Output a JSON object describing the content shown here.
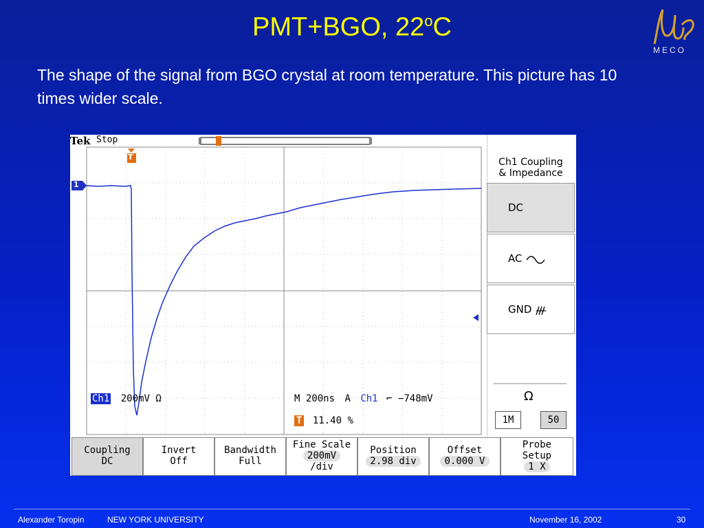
{
  "slide": {
    "title_main": "PMT+BGO, 22",
    "title_sup": "o",
    "title_end": "C",
    "subtitle": "The shape of the signal from BGO crystal at room temperature. This picture has 10 times wider scale.",
    "logo_text": "MECO",
    "footer": {
      "author": "Alexander Toropin",
      "institution": "NEW YORK UNIVERSITY",
      "date": "November 16, 2002",
      "page": "30"
    }
  },
  "scope": {
    "brand": "Tek",
    "status": "Stop",
    "trigger_marker": "T",
    "channel_marker": "1",
    "ch_label": "Ch1",
    "ch_scale": "200mV",
    "ohm_symbol": "Ω",
    "timebase": "M 200ns",
    "trigger_mode": "A",
    "trigger_channel": "Ch1",
    "trigger_slope": "⌐",
    "trigger_level": "−748mV",
    "trigger_position": "11.40 %",
    "side_menu": {
      "header_line1": "Ch1 Coupling",
      "header_line2": "& Impedance",
      "options": [
        "DC",
        "AC",
        "GND"
      ],
      "impedance_label": "Ω",
      "impedance_options": [
        "1M",
        "50"
      ]
    },
    "bottom_menu": [
      {
        "line1": "Coupling",
        "line2": "DC"
      },
      {
        "line1": "Invert",
        "line2": "Off"
      },
      {
        "line1": "Bandwidth",
        "line2": "Full"
      },
      {
        "line1": "Fine Scale",
        "line2": "200mV",
        "line3": "/div"
      },
      {
        "line1": "Position",
        "line2": "2.98 div"
      },
      {
        "line1": "Offset",
        "line2": "0.000 V"
      },
      {
        "line1": "Probe",
        "line2": "Setup",
        "line3": "1 X"
      }
    ]
  }
}
